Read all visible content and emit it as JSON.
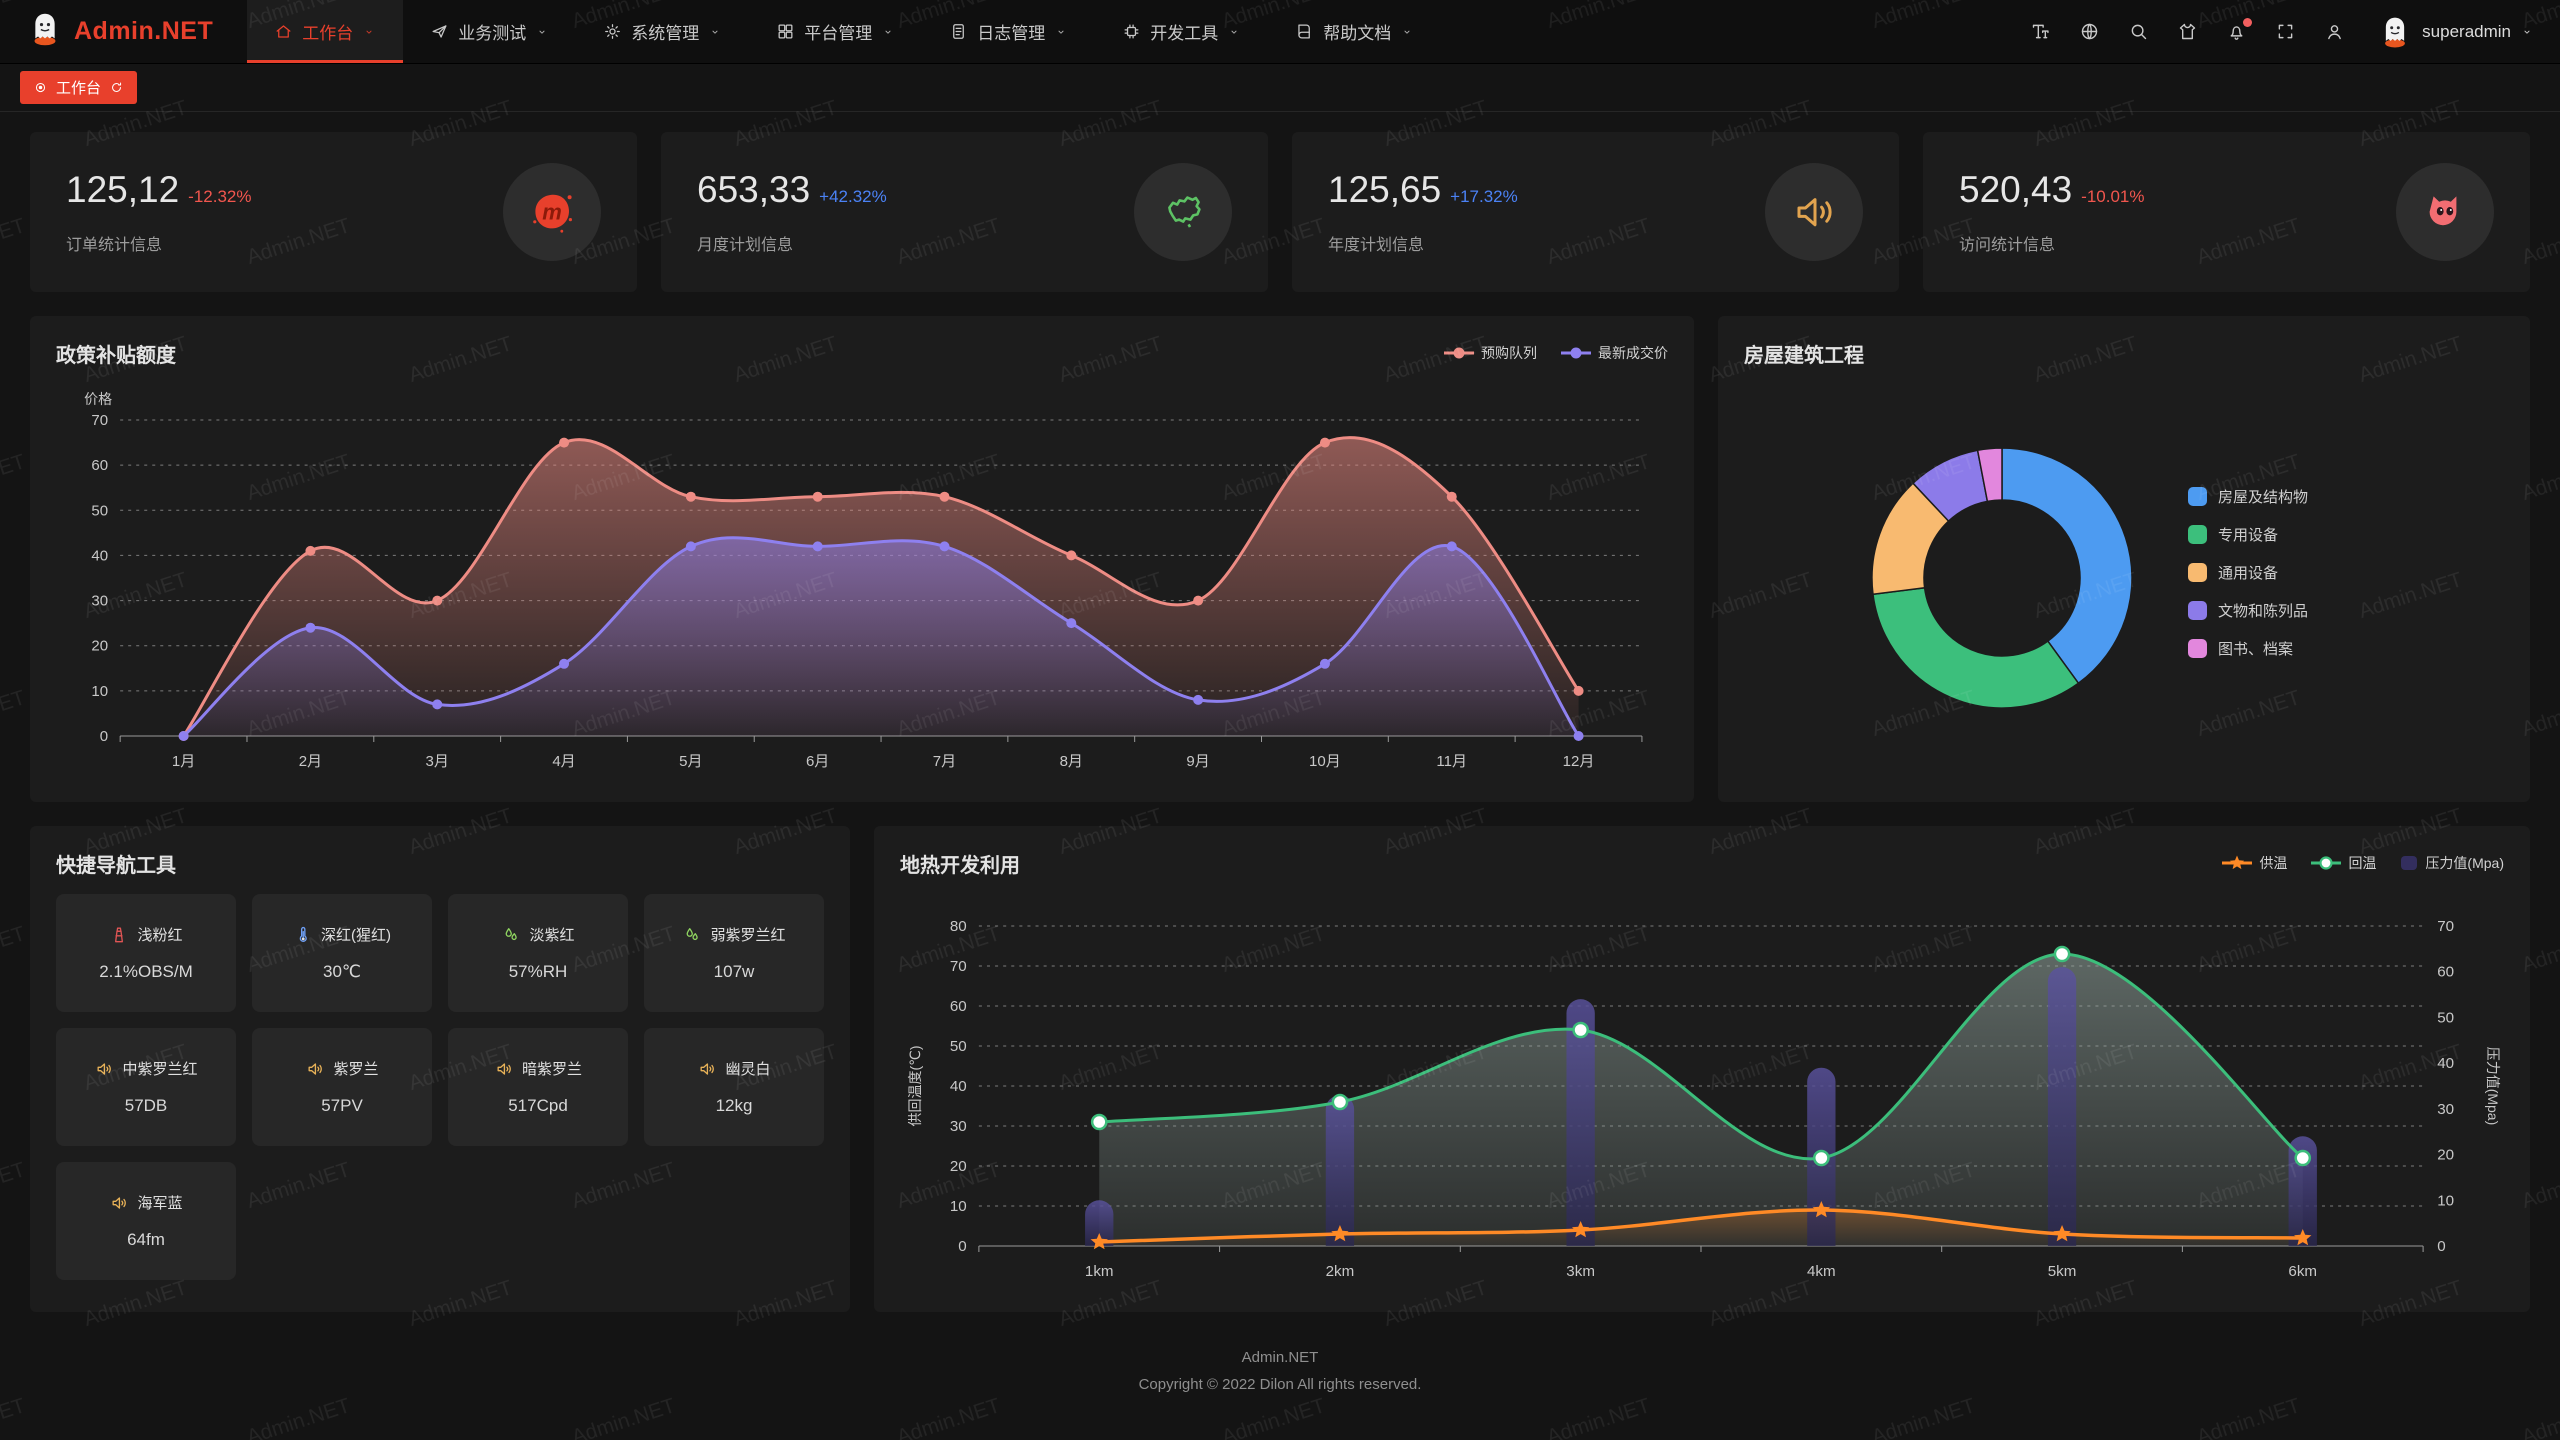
{
  "app": {
    "brand": "Admin.NET",
    "watermark": "Admin.NET"
  },
  "header": {
    "nav": [
      {
        "label": "工作台",
        "icon": "home-icon",
        "active": true,
        "dropdown": true
      },
      {
        "label": "业务测试",
        "icon": "send-icon",
        "active": false,
        "dropdown": true
      },
      {
        "label": "系统管理",
        "icon": "gear-icon",
        "active": false,
        "dropdown": true
      },
      {
        "label": "平台管理",
        "icon": "grid-icon",
        "active": false,
        "dropdown": true
      },
      {
        "label": "日志管理",
        "icon": "file-icon",
        "active": false,
        "dropdown": true
      },
      {
        "label": "开发工具",
        "icon": "cpu-icon",
        "active": false,
        "dropdown": true
      },
      {
        "label": "帮助文档",
        "icon": "book-icon",
        "active": false,
        "dropdown": true
      }
    ],
    "actions": [
      {
        "name": "font-size",
        "icon": "text-size-icon",
        "badge": false
      },
      {
        "name": "language",
        "icon": "language-icon",
        "badge": false
      },
      {
        "name": "search",
        "icon": "search-icon",
        "badge": false
      },
      {
        "name": "theme",
        "icon": "shirt-icon",
        "badge": false
      },
      {
        "name": "notifications",
        "icon": "bell-icon",
        "badge": true
      },
      {
        "name": "fullscreen",
        "icon": "fullscreen-icon",
        "badge": false
      },
      {
        "name": "profile",
        "icon": "user-icon",
        "badge": false
      }
    ],
    "user": {
      "name": "superadmin"
    }
  },
  "tabs": [
    {
      "label": "工作台",
      "active": true
    }
  ],
  "stats": [
    {
      "value": "125,12",
      "delta": "-12.32%",
      "trend": "down",
      "label": "订单统计信息",
      "icon": "meetup-icon"
    },
    {
      "value": "653,33",
      "delta": "+42.32%",
      "trend": "up",
      "label": "月度计划信息",
      "icon": "china-map-icon"
    },
    {
      "value": "125,65",
      "delta": "+17.32%",
      "trend": "up",
      "label": "年度计划信息",
      "icon": "speaker-orange-icon"
    },
    {
      "value": "520,43",
      "delta": "-10.01%",
      "trend": "down",
      "label": "访问统计信息",
      "icon": "cat-icon"
    }
  ],
  "trend_colors": {
    "up": "#4b82f5",
    "down": "#f1564e"
  },
  "chart_data": [
    {
      "type": "area",
      "title": "政策补贴额度",
      "ylabel": "价格",
      "categories": [
        "1月",
        "2月",
        "3月",
        "4月",
        "5月",
        "6月",
        "7月",
        "8月",
        "9月",
        "10月",
        "11月",
        "12月"
      ],
      "ylim": [
        0,
        70
      ],
      "y_ticks": [
        0,
        10,
        20,
        30,
        40,
        50,
        60,
        70
      ],
      "grid": "dashed",
      "legend_position": "top-right",
      "series": [
        {
          "name": "预购队列",
          "color": "#ee8c84",
          "values": [
            0,
            41,
            30,
            65,
            53,
            53,
            53,
            40,
            30,
            65,
            53,
            10
          ]
        },
        {
          "name": "最新成交价",
          "color": "#8e80ef",
          "values": [
            0,
            24,
            7,
            16,
            42,
            42,
            42,
            25,
            8,
            16,
            42,
            0
          ]
        }
      ]
    },
    {
      "type": "pie",
      "title": "房屋建筑工程",
      "donut": true,
      "legend_position": "right",
      "labels": [
        "房屋及结构物",
        "专用设备",
        "通用设备",
        "文物和陈列品",
        "图书、档案"
      ],
      "values": [
        40,
        33,
        15,
        9,
        3
      ],
      "colors": [
        "#4d9bf1",
        "#3cbf7c",
        "#f8ba70",
        "#8c7be9",
        "#e287dd"
      ]
    },
    {
      "type": "line-bar",
      "title": "地热开发利用",
      "categories": [
        "1km",
        "2km",
        "3km",
        "4km",
        "5km",
        "6km"
      ],
      "ylabel_left": "供回温度(℃)",
      "ylabel_right": "压力值(Mpa)",
      "ylim_left": [
        0,
        80
      ],
      "ylim_right": [
        0,
        70
      ],
      "grid": "dashed",
      "legend_position": "top-right",
      "series": [
        {
          "name": "供温",
          "type": "line",
          "marker": "star",
          "axis": "left",
          "color": "#ff8a26",
          "values": [
            1,
            3,
            4,
            9,
            3,
            2
          ]
        },
        {
          "name": "回温",
          "type": "line",
          "marker": "circle",
          "axis": "left",
          "color": "#3cbe7b",
          "area": true,
          "values": [
            31,
            36,
            54,
            22,
            73,
            22
          ]
        },
        {
          "name": "压力值(Mpa)",
          "type": "bar",
          "axis": "right",
          "color": "#3b3566",
          "values": [
            10,
            33,
            54,
            39,
            61,
            24
          ]
        }
      ]
    }
  ],
  "quick_nav": {
    "title": "快捷导航工具",
    "items": [
      {
        "name": "浅粉红",
        "value": "2.1%OBS/M",
        "icon": "tower-icon",
        "color": "#e05555"
      },
      {
        "name": "深红(猩红)",
        "value": "30℃",
        "icon": "thermometer-icon",
        "color": "#6fa0f7"
      },
      {
        "name": "淡紫红",
        "value": "57%RH",
        "icon": "drops-icon",
        "color": "#8fd460"
      },
      {
        "name": "弱紫罗兰红",
        "value": "107w",
        "icon": "drops-icon",
        "color": "#8fd460"
      },
      {
        "name": "中紫罗兰红",
        "value": "57DB",
        "icon": "speaker-icon",
        "color": "#e8b258"
      },
      {
        "name": "紫罗兰",
        "value": "57PV",
        "icon": "speaker-icon",
        "color": "#e8b258"
      },
      {
        "name": "暗紫罗兰",
        "value": "517Cpd",
        "icon": "speaker-icon",
        "color": "#e8b258"
      },
      {
        "name": "幽灵白",
        "value": "12kg",
        "icon": "speaker-icon",
        "color": "#e8b258"
      },
      {
        "name": "海军蓝",
        "value": "64fm",
        "icon": "speaker-icon",
        "color": "#e8b258"
      }
    ]
  },
  "footer": {
    "line1": "Admin.NET",
    "line2": "Copyright © 2022 Dilon All rights reserved."
  }
}
